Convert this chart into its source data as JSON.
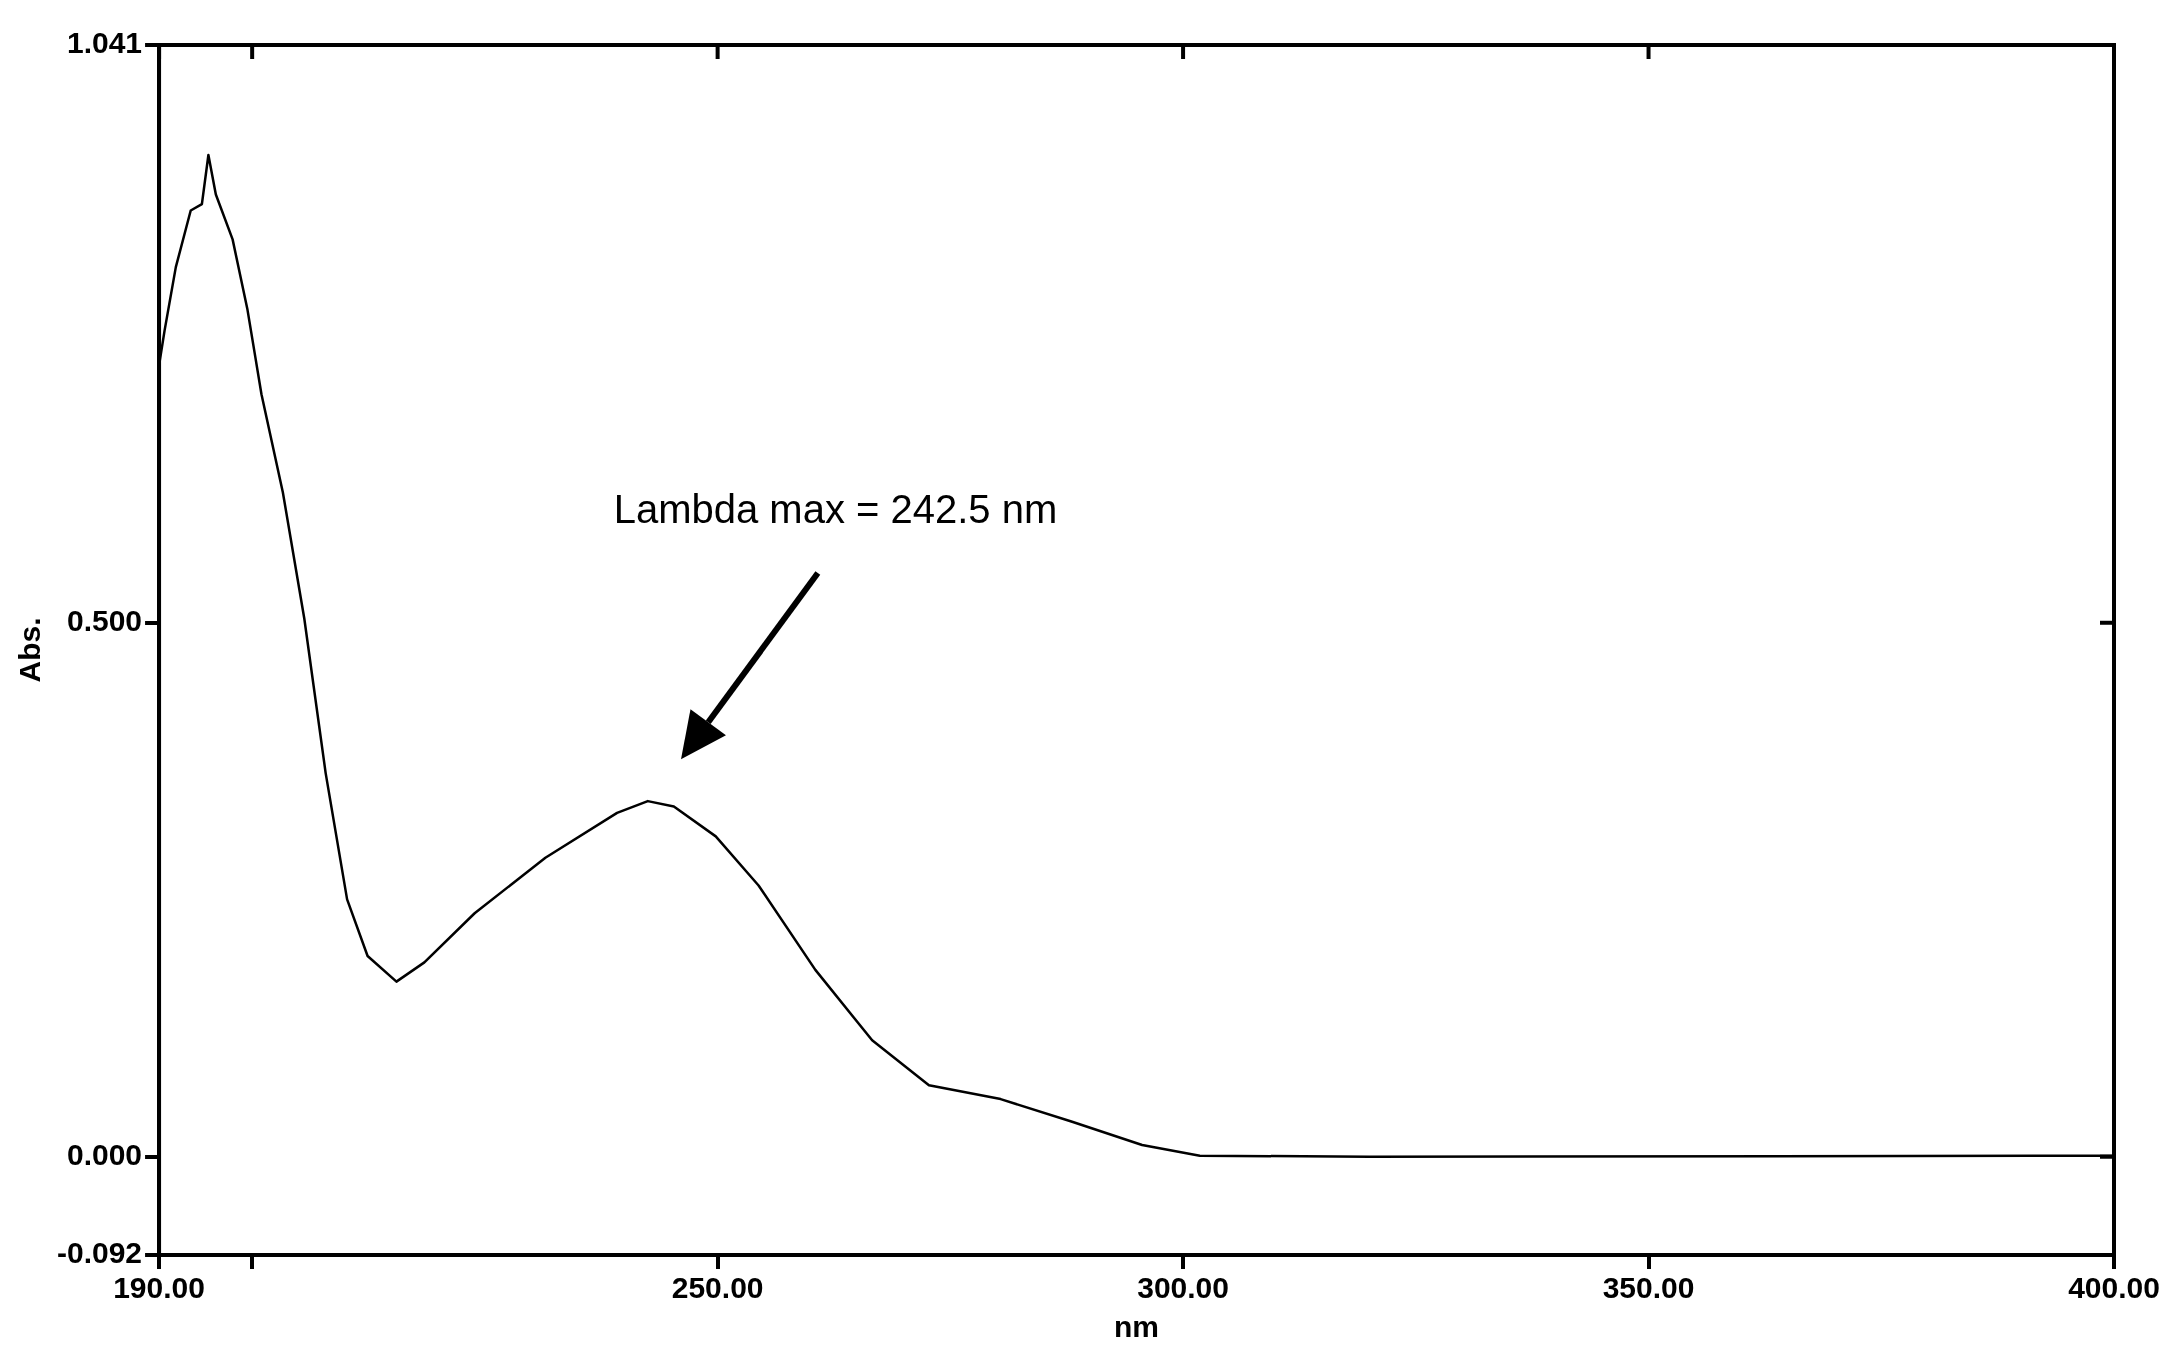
{
  "chart_data": {
    "type": "line",
    "xlabel": "nm",
    "ylabel": "Abs.",
    "x": [
      190,
      190.6,
      191.8,
      193.4,
      194.6,
      195.3,
      196.1,
      197.9,
      199.5,
      201,
      203.3,
      205.6,
      207.9,
      210.2,
      212.4,
      215.5,
      218.5,
      223.9,
      231.5,
      239.2,
      242.5,
      245.3,
      249.8,
      254.4,
      260.5,
      266.6,
      272.7,
      280.4,
      288,
      295.6,
      301.8,
      320,
      400
    ],
    "series": [
      {
        "color": "#000000",
        "values": [
          0.741,
          0.774,
          0.833,
          0.886,
          0.892,
          0.938,
          0.901,
          0.859,
          0.793,
          0.714,
          0.622,
          0.504,
          0.359,
          0.241,
          0.188,
          0.164,
          0.182,
          0.228,
          0.28,
          0.322,
          0.333,
          0.328,
          0.3,
          0.254,
          0.175,
          0.109,
          0.067,
          0.054,
          0.033,
          0.011,
          0.001,
          0,
          0.001
        ]
      }
    ],
    "xlim": [
      190,
      400
    ],
    "xticks": [
      {
        "value": 190,
        "label": "190.00"
      },
      {
        "value": 200,
        "label": null
      },
      {
        "value": 250,
        "label": "250.00"
      },
      {
        "value": 300,
        "label": "300.00"
      },
      {
        "value": 350,
        "label": "350.00"
      },
      {
        "value": 400,
        "label": "400.00"
      }
    ],
    "ylim": [
      -0.092,
      1.041
    ],
    "yticks": [
      -0.092,
      {
        "value": 0,
        "label": "0.000"
      },
      {
        "value": 0.5,
        "label": "0.500"
      },
      1.041
    ],
    "grid": false,
    "legend": false,
    "marker": "none",
    "line_style": "solid",
    "annotations": [
      "Lambda max = 242.5 nm"
    ]
  }
}
